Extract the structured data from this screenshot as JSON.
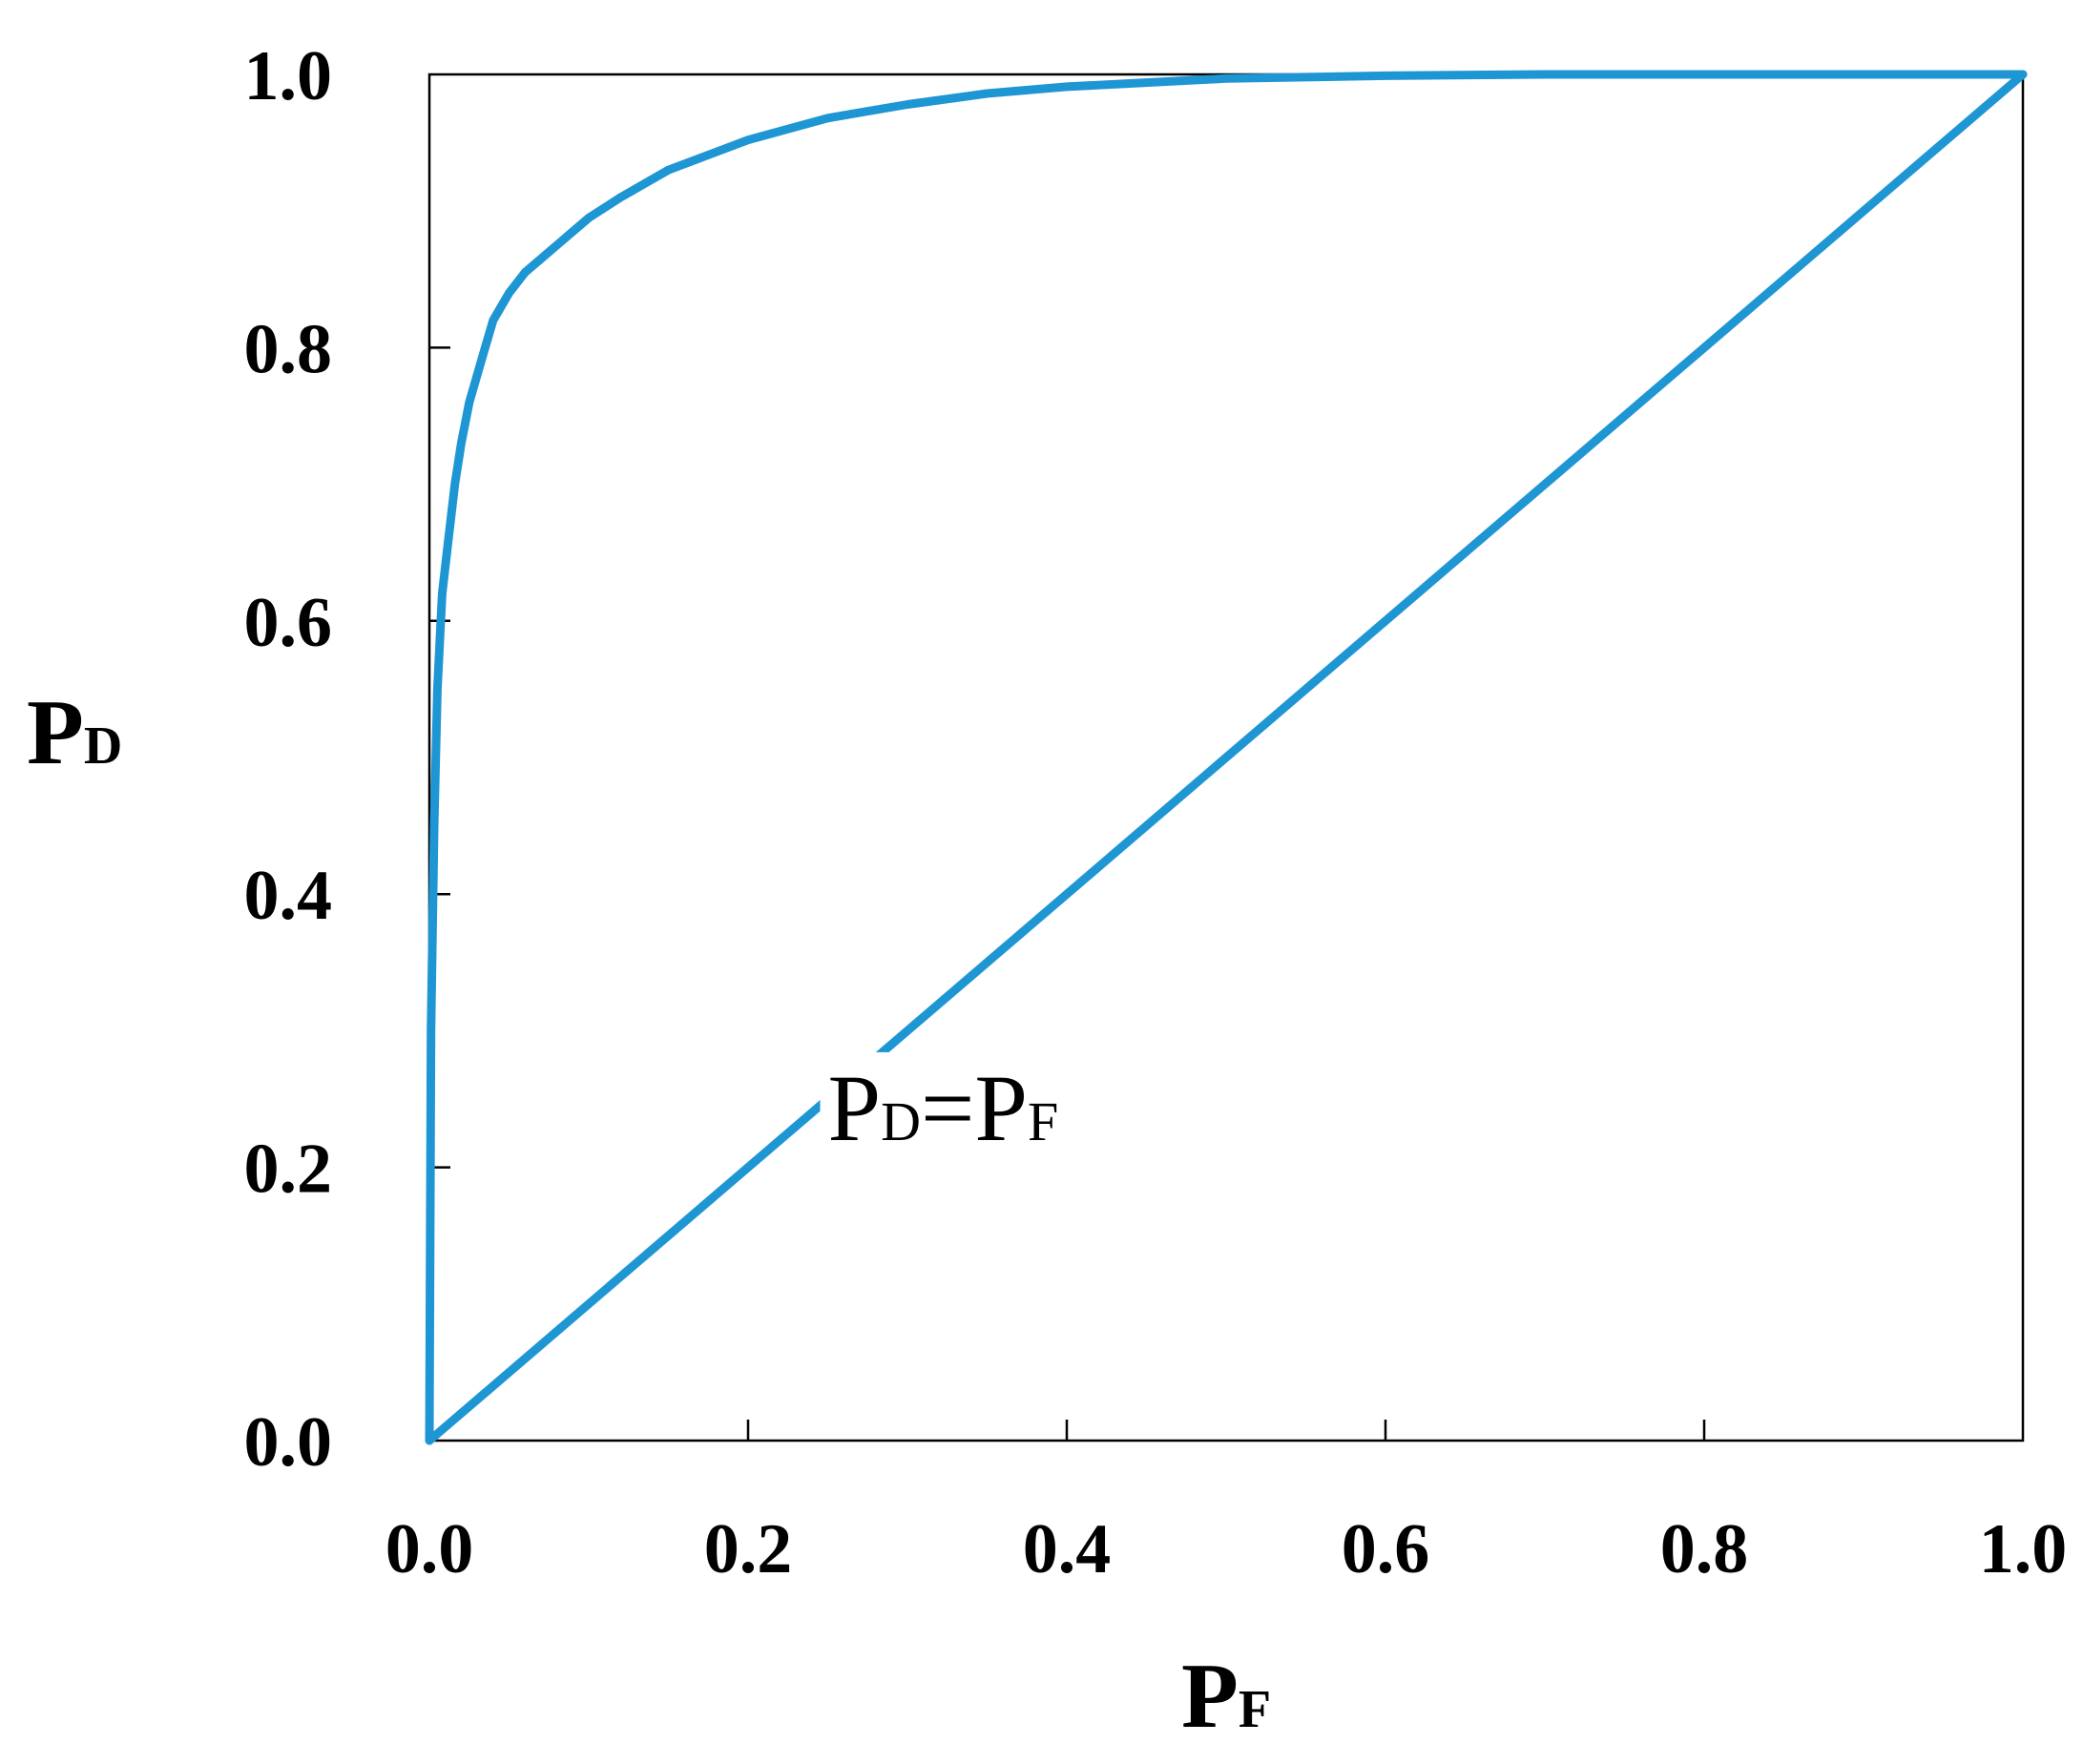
{
  "chart_data": {
    "type": "line",
    "title": "",
    "xlabel": {
      "main": "P",
      "sub": "F"
    },
    "ylabel": {
      "main": "P",
      "sub": "D"
    },
    "xlim": [
      0.0,
      1.0
    ],
    "ylim": [
      0.0,
      1.0
    ],
    "x_ticks": [
      "0.0",
      "0.2",
      "0.4",
      "0.6",
      "0.8",
      "1.0"
    ],
    "y_ticks": [
      "0.0",
      "0.2",
      "0.4",
      "0.6",
      "0.8",
      "1.0"
    ],
    "grid": false,
    "legend": "none",
    "line_color": "#1f96d4",
    "series": [
      {
        "x": [
          0.0,
          0.001,
          0.003,
          0.005,
          0.008,
          0.012,
          0.016,
          0.02,
          0.025,
          0.03,
          0.035,
          0.04,
          0.05,
          0.06,
          0.07,
          0.08,
          0.09,
          0.1,
          0.12,
          0.15,
          0.2,
          0.25,
          0.3,
          0.35,
          0.4,
          0.5,
          0.6,
          0.7,
          0.8,
          0.9,
          1.0
        ],
        "y": [
          0.0,
          0.3,
          0.45,
          0.55,
          0.62,
          0.66,
          0.7,
          0.73,
          0.76,
          0.78,
          0.8,
          0.82,
          0.84,
          0.855,
          0.865,
          0.875,
          0.885,
          0.895,
          0.91,
          0.93,
          0.952,
          0.968,
          0.978,
          0.986,
          0.991,
          0.997,
          0.999,
          1.0,
          1.0,
          1.0,
          1.0
        ]
      },
      {
        "x": [
          0.0,
          1.0
        ],
        "y": [
          0.0,
          1.0
        ]
      }
    ],
    "annotations": [
      {
        "main": "P",
        "sub1": "D",
        "mid": "=P",
        "sub2": "F",
        "x": 0.25,
        "y": 0.22
      }
    ]
  }
}
